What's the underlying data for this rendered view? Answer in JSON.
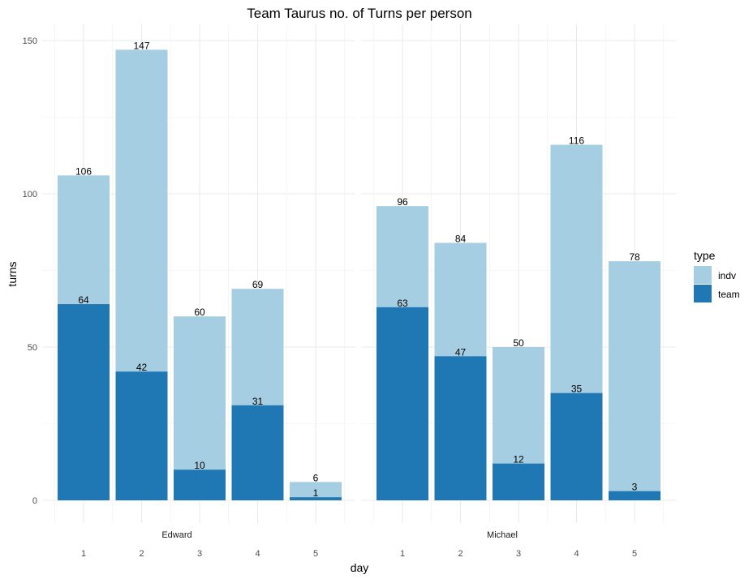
{
  "chart_data": {
    "type": "bar",
    "stacking": "overlaid",
    "title": "Team Taurus no. of Turns per person",
    "xlabel": "day",
    "ylabel": "turns",
    "ylim": [
      0,
      150
    ],
    "y_ticks": [
      0,
      50,
      100,
      150
    ],
    "categories": [
      "1",
      "2",
      "3",
      "4",
      "5"
    ],
    "facets": [
      {
        "name": "Edward",
        "series": [
          {
            "name": "indv",
            "values": [
              106,
              147,
              60,
              69,
              6
            ]
          },
          {
            "name": "team",
            "values": [
              64,
              42,
              10,
              31,
              1
            ]
          }
        ]
      },
      {
        "name": "Michael",
        "series": [
          {
            "name": "indv",
            "values": [
              96,
              84,
              50,
              116,
              78
            ]
          },
          {
            "name": "team",
            "values": [
              63,
              47,
              12,
              35,
              3
            ]
          }
        ]
      }
    ],
    "legend": {
      "title": "type",
      "position": "right",
      "entries": [
        {
          "name": "indv",
          "color": "#a6cee3"
        },
        {
          "name": "team",
          "color": "#1f78b4"
        }
      ]
    },
    "grid": true,
    "colors": {
      "indv": "#a6cee3",
      "team": "#1f78b4"
    }
  }
}
